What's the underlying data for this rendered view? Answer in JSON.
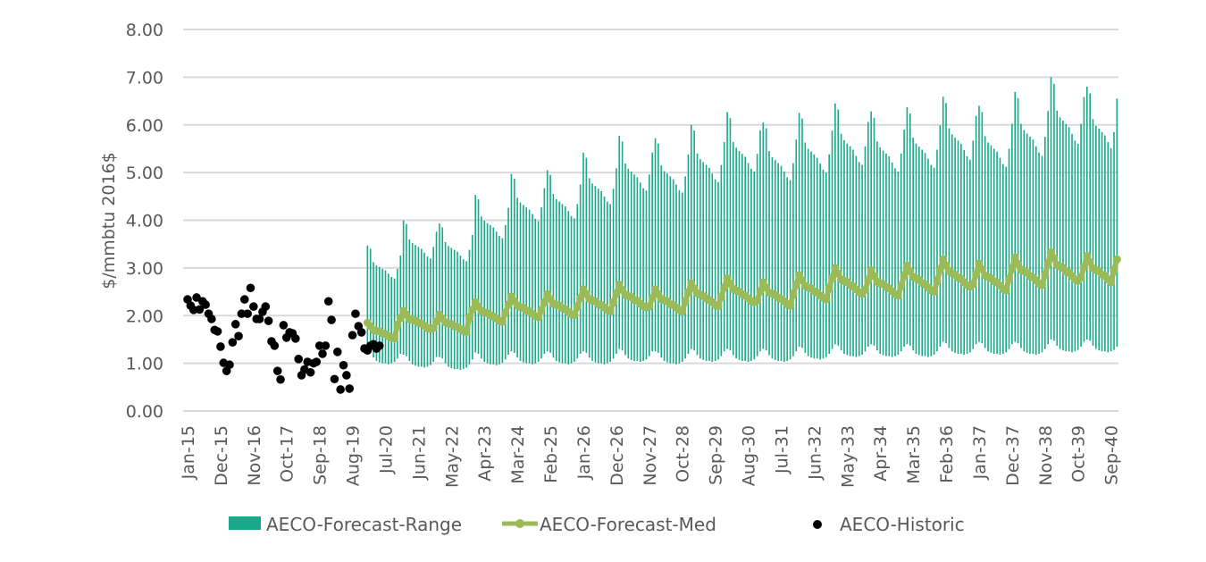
{
  "chart_data": {
    "type": "bar+line+scatter",
    "title": "",
    "xlabel": "",
    "ylabel": "$/mmbtu 2016$",
    "ylim": [
      0,
      8
    ],
    "yticks": [
      "0.00",
      "1.00",
      "2.00",
      "3.00",
      "4.00",
      "5.00",
      "6.00",
      "7.00",
      "8.00"
    ],
    "x_start": "Jan-15",
    "x_unit": "month",
    "xtick_labels": [
      "Jan-15",
      "Dec-15",
      "Nov-16",
      "Oct-17",
      "Sep-18",
      "Aug-19",
      "Jul-20",
      "Jun-21",
      "May-22",
      "Apr-23",
      "Mar-24",
      "Feb-25",
      "Jan-26",
      "Dec-26",
      "Nov-27",
      "Oct-28",
      "Sep-29",
      "Aug-30",
      "Jul-31",
      "Jun-32",
      "May-33",
      "Apr-34",
      "Mar-35",
      "Feb-36",
      "Jan-37",
      "Dec-37",
      "Nov-38",
      "Oct-39",
      "Sep-40"
    ],
    "xtick_every_months": 11,
    "grid": "horizontal",
    "legend_position": "bottom",
    "legend": [
      {
        "name": "AECO-Forecast-Range",
        "color": "#17a98a"
      },
      {
        "name": "AECO-Forecast-Med",
        "color": "#9bbb59"
      },
      {
        "name": "AECO-Historic",
        "color": "#000000"
      }
    ],
    "historic": {
      "start": "Jan-15",
      "values": [
        2.34,
        2.21,
        2.12,
        2.38,
        2.13,
        2.3,
        2.23,
        2.04,
        1.93,
        1.7,
        1.67,
        1.35,
        1.01,
        0.84,
        0.97,
        1.44,
        1.82,
        1.57,
        2.04,
        2.34,
        2.04,
        2.58,
        2.19,
        1.93,
        1.93,
        2.08,
        2.19,
        1.89,
        1.46,
        1.37,
        0.84,
        0.66,
        1.8,
        1.54,
        1.65,
        1.63,
        1.52,
        1.09,
        0.75,
        0.87,
        1.03,
        0.81,
        1.0,
        1.03,
        1.37,
        1.2,
        1.37,
        2.3,
        1.91,
        0.67,
        1.24,
        0.45,
        0.96,
        0.75,
        0.47,
        1.59,
        2.04,
        1.78,
        1.65,
        1.31,
        1.27,
        1.37,
        1.4,
        1.31,
        1.37
      ]
    },
    "forecast": [
      {
        "year": 2020,
        "high": [
          3.47,
          3.4,
          3.12,
          3.05,
          3.02,
          2.98,
          2.95,
          2.88,
          2.81,
          2.78,
          2.98,
          3.26
        ],
        "med": [
          1.85,
          1.78,
          1.7,
          1.68,
          1.67,
          1.63,
          1.61,
          1.57,
          1.54,
          1.52,
          1.81,
          1.95
        ],
        "low": [
          1.25,
          1.22,
          1.12,
          1.05,
          1.02,
          1.0,
          1.0,
          0.98,
          1.0,
          1.03,
          1.1,
          1.2
        ]
      },
      {
        "year": 2021,
        "high": [
          4.0,
          3.92,
          3.6,
          3.52,
          3.48,
          3.44,
          3.4,
          3.32,
          3.24,
          3.2,
          3.44,
          3.76
        ],
        "med": [
          2.1,
          2.02,
          1.93,
          1.91,
          1.89,
          1.85,
          1.83,
          1.79,
          1.74,
          1.72,
          1.74,
          1.88
        ],
        "low": [
          1.18,
          1.15,
          1.05,
          0.98,
          0.95,
          0.93,
          0.93,
          0.91,
          0.93,
          0.96,
          1.03,
          1.13
        ]
      },
      {
        "year": 2022,
        "high": [
          3.93,
          3.85,
          3.54,
          3.46,
          3.42,
          3.38,
          3.34,
          3.26,
          3.18,
          3.14,
          3.38,
          3.69
        ],
        "med": [
          2.02,
          1.94,
          1.86,
          1.84,
          1.82,
          1.78,
          1.76,
          1.72,
          1.68,
          1.66,
          1.96,
          2.12
        ],
        "low": [
          1.13,
          1.1,
          1.0,
          0.93,
          0.9,
          0.88,
          0.88,
          0.86,
          0.88,
          0.91,
          0.98,
          1.08
        ]
      },
      {
        "year": 2023,
        "high": [
          4.53,
          4.44,
          4.08,
          3.99,
          3.94,
          3.9,
          3.85,
          3.76,
          3.67,
          3.62,
          3.9,
          4.26
        ],
        "med": [
          2.28,
          2.19,
          2.1,
          2.07,
          2.05,
          2.01,
          1.98,
          1.94,
          1.89,
          1.87,
          2.06,
          2.23
        ],
        "low": [
          1.23,
          1.2,
          1.1,
          1.03,
          1.0,
          0.98,
          0.98,
          0.96,
          0.98,
          1.01,
          1.08,
          1.18
        ]
      },
      {
        "year": 2024,
        "high": [
          4.97,
          4.87,
          4.47,
          4.37,
          4.32,
          4.27,
          4.22,
          4.13,
          4.03,
          3.98,
          4.27,
          4.67
        ],
        "med": [
          2.4,
          2.3,
          2.21,
          2.18,
          2.16,
          2.11,
          2.09,
          2.04,
          1.99,
          1.97,
          2.11,
          2.28
        ],
        "low": [
          1.25,
          1.22,
          1.12,
          1.05,
          1.02,
          1.0,
          1.0,
          0.98,
          1.0,
          1.03,
          1.1,
          1.2
        ]
      },
      {
        "year": 2025,
        "high": [
          5.05,
          4.95,
          4.55,
          4.44,
          4.39,
          4.34,
          4.29,
          4.19,
          4.09,
          4.04,
          4.34,
          4.75
        ],
        "med": [
          2.45,
          2.35,
          2.25,
          2.23,
          2.21,
          2.16,
          2.13,
          2.08,
          2.03,
          2.01,
          2.19,
          2.37
        ],
        "low": [
          1.25,
          1.22,
          1.12,
          1.05,
          1.02,
          1.0,
          1.0,
          0.98,
          1.0,
          1.03,
          1.1,
          1.2
        ]
      },
      {
        "year": 2026,
        "high": [
          5.42,
          5.31,
          4.88,
          4.77,
          4.72,
          4.66,
          4.61,
          4.5,
          4.39,
          4.34,
          4.66,
          5.09
        ],
        "med": [
          2.55,
          2.45,
          2.35,
          2.32,
          2.3,
          2.24,
          2.22,
          2.17,
          2.12,
          2.09,
          2.28,
          2.46
        ],
        "low": [
          1.25,
          1.22,
          1.12,
          1.05,
          1.02,
          1.0,
          1.0,
          0.98,
          1.0,
          1.03,
          1.1,
          1.2
        ]
      },
      {
        "year": 2027,
        "high": [
          5.77,
          5.65,
          5.19,
          5.08,
          5.02,
          4.96,
          4.9,
          4.79,
          4.67,
          4.62,
          4.96,
          5.42
        ],
        "med": [
          2.65,
          2.54,
          2.44,
          2.41,
          2.39,
          2.33,
          2.31,
          2.25,
          2.2,
          2.17,
          2.19,
          2.37
        ],
        "low": [
          1.3,
          1.27,
          1.17,
          1.1,
          1.07,
          1.05,
          1.05,
          1.03,
          1.05,
          1.08,
          1.15,
          1.25
        ]
      },
      {
        "year": 2028,
        "high": [
          5.72,
          5.61,
          5.15,
          5.03,
          4.98,
          4.92,
          4.86,
          4.75,
          4.63,
          4.58,
          4.92,
          5.38
        ],
        "med": [
          2.55,
          2.45,
          2.35,
          2.32,
          2.3,
          2.24,
          2.22,
          2.17,
          2.12,
          2.09,
          2.3,
          2.49
        ],
        "low": [
          1.25,
          1.22,
          1.12,
          1.05,
          1.02,
          1.0,
          1.0,
          0.98,
          1.0,
          1.03,
          1.1,
          1.2
        ]
      },
      {
        "year": 2029,
        "high": [
          6.0,
          5.88,
          5.4,
          5.28,
          5.22,
          5.16,
          5.1,
          4.98,
          4.86,
          4.8,
          5.16,
          5.64
        ],
        "med": [
          2.68,
          2.57,
          2.47,
          2.44,
          2.41,
          2.36,
          2.33,
          2.28,
          2.22,
          2.2,
          2.39,
          2.59
        ],
        "low": [
          1.3,
          1.27,
          1.17,
          1.1,
          1.07,
          1.05,
          1.05,
          1.03,
          1.05,
          1.08,
          1.15,
          1.25
        ]
      },
      {
        "year": 2030,
        "high": [
          6.27,
          6.14,
          5.64,
          5.52,
          5.45,
          5.39,
          5.33,
          5.2,
          5.08,
          5.02,
          5.39,
          5.89
        ],
        "med": [
          2.78,
          2.67,
          2.56,
          2.53,
          2.5,
          2.45,
          2.42,
          2.36,
          2.31,
          2.28,
          2.32,
          2.51
        ],
        "low": [
          1.3,
          1.27,
          1.17,
          1.1,
          1.07,
          1.05,
          1.05,
          1.03,
          1.05,
          1.08,
          1.15,
          1.25
        ]
      },
      {
        "year": 2031,
        "high": [
          6.05,
          5.93,
          5.45,
          5.32,
          5.26,
          5.2,
          5.14,
          5.02,
          4.9,
          4.84,
          5.2,
          5.69
        ],
        "med": [
          2.7,
          2.59,
          2.48,
          2.46,
          2.43,
          2.38,
          2.35,
          2.3,
          2.24,
          2.21,
          2.45,
          2.65
        ],
        "low": [
          1.3,
          1.27,
          1.17,
          1.1,
          1.07,
          1.05,
          1.05,
          1.03,
          1.05,
          1.08,
          1.15,
          1.25
        ]
      },
      {
        "year": 2032,
        "high": [
          6.25,
          6.13,
          5.63,
          5.5,
          5.44,
          5.38,
          5.31,
          5.19,
          5.06,
          5.0,
          5.38,
          5.88
        ],
        "med": [
          2.85,
          2.74,
          2.62,
          2.59,
          2.57,
          2.51,
          2.48,
          2.42,
          2.37,
          2.34,
          2.58,
          2.79
        ],
        "low": [
          1.35,
          1.32,
          1.22,
          1.15,
          1.12,
          1.1,
          1.1,
          1.08,
          1.1,
          1.13,
          1.2,
          1.3
        ]
      },
      {
        "year": 2033,
        "high": [
          6.45,
          6.32,
          5.81,
          5.68,
          5.61,
          5.55,
          5.48,
          5.35,
          5.22,
          5.16,
          5.55,
          6.06
        ],
        "med": [
          3.0,
          2.88,
          2.76,
          2.73,
          2.7,
          2.64,
          2.61,
          2.55,
          2.49,
          2.46,
          2.54,
          2.74
        ],
        "low": [
          1.4,
          1.37,
          1.27,
          1.2,
          1.17,
          1.15,
          1.15,
          1.13,
          1.15,
          1.18,
          1.25,
          1.35
        ]
      },
      {
        "year": 2034,
        "high": [
          6.28,
          6.15,
          5.65,
          5.53,
          5.46,
          5.4,
          5.34,
          5.21,
          5.09,
          5.02,
          5.4,
          5.9
        ],
        "med": [
          2.95,
          2.83,
          2.71,
          2.68,
          2.66,
          2.6,
          2.57,
          2.51,
          2.45,
          2.42,
          2.62,
          2.84
        ],
        "low": [
          1.4,
          1.37,
          1.27,
          1.2,
          1.17,
          1.15,
          1.15,
          1.13,
          1.15,
          1.18,
          1.25,
          1.35
        ]
      },
      {
        "year": 2035,
        "high": [
          6.37,
          6.24,
          5.73,
          5.61,
          5.54,
          5.48,
          5.41,
          5.29,
          5.16,
          5.1,
          5.48,
          5.99
        ],
        "med": [
          3.05,
          2.93,
          2.81,
          2.78,
          2.75,
          2.68,
          2.65,
          2.59,
          2.53,
          2.5,
          2.73,
          2.96
        ],
        "low": [
          1.4,
          1.37,
          1.27,
          1.2,
          1.17,
          1.15,
          1.15,
          1.13,
          1.15,
          1.18,
          1.25,
          1.35
        ]
      },
      {
        "year": 2036,
        "high": [
          6.59,
          6.46,
          5.93,
          5.8,
          5.73,
          5.67,
          5.6,
          5.47,
          5.34,
          5.27,
          5.67,
          6.19
        ],
        "med": [
          3.18,
          3.05,
          2.93,
          2.89,
          2.86,
          2.8,
          2.77,
          2.7,
          2.64,
          2.61,
          2.66,
          2.87
        ],
        "low": [
          1.45,
          1.42,
          1.32,
          1.25,
          1.22,
          1.2,
          1.2,
          1.18,
          1.2,
          1.23,
          1.3,
          1.4
        ]
      },
      {
        "year": 2037,
        "high": [
          6.4,
          6.27,
          5.76,
          5.63,
          5.57,
          5.5,
          5.44,
          5.31,
          5.18,
          5.12,
          5.5,
          6.02
        ],
        "med": [
          3.09,
          2.97,
          2.84,
          2.81,
          2.78,
          2.72,
          2.69,
          2.63,
          2.56,
          2.53,
          2.77,
          2.99
        ],
        "low": [
          1.45,
          1.42,
          1.32,
          1.25,
          1.22,
          1.2,
          1.2,
          1.18,
          1.2,
          1.23,
          1.3,
          1.4
        ]
      },
      {
        "year": 2038,
        "high": [
          6.69,
          6.56,
          6.02,
          5.89,
          5.82,
          5.75,
          5.69,
          5.55,
          5.42,
          5.35,
          5.75,
          6.29
        ],
        "med": [
          3.22,
          3.09,
          2.96,
          2.93,
          2.9,
          2.83,
          2.8,
          2.74,
          2.67,
          2.64,
          2.86,
          3.1
        ],
        "low": [
          1.45,
          1.42,
          1.32,
          1.25,
          1.22,
          1.2,
          1.2,
          1.18,
          1.2,
          1.23,
          1.3,
          1.4
        ]
      },
      {
        "year": 2039,
        "high": [
          7.0,
          6.86,
          6.3,
          6.16,
          6.09,
          6.02,
          5.95,
          5.81,
          5.67,
          5.6,
          6.02,
          6.58
        ],
        "med": [
          3.33,
          3.2,
          3.06,
          3.03,
          3.0,
          2.93,
          2.9,
          2.83,
          2.76,
          2.73,
          2.8,
          3.02
        ],
        "low": [
          1.5,
          1.47,
          1.37,
          1.3,
          1.27,
          1.25,
          1.25,
          1.23,
          1.25,
          1.28,
          1.35,
          1.45
        ]
      },
      {
        "year": 2040,
        "high": [
          6.8,
          6.66,
          6.12,
          5.98,
          5.92,
          5.85,
          5.78,
          5.64,
          5.51,
          5.85,
          6.55
        ],
        "med": [
          3.25,
          3.12,
          2.99,
          2.96,
          2.93,
          2.86,
          2.83,
          2.76,
          2.7,
          2.95,
          3.18
        ],
        "low": [
          1.5,
          1.47,
          1.37,
          1.3,
          1.27,
          1.25,
          1.25,
          1.23,
          1.25,
          1.28,
          1.35
        ]
      }
    ]
  }
}
